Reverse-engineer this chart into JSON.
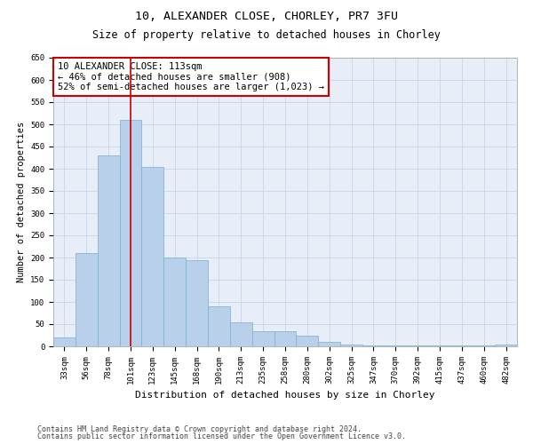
{
  "title1": "10, ALEXANDER CLOSE, CHORLEY, PR7 3FU",
  "title2": "Size of property relative to detached houses in Chorley",
  "xlabel": "Distribution of detached houses by size in Chorley",
  "ylabel": "Number of detached properties",
  "categories": [
    "33sqm",
    "56sqm",
    "78sqm",
    "101sqm",
    "123sqm",
    "145sqm",
    "168sqm",
    "190sqm",
    "213sqm",
    "235sqm",
    "258sqm",
    "280sqm",
    "302sqm",
    "325sqm",
    "347sqm",
    "370sqm",
    "392sqm",
    "415sqm",
    "437sqm",
    "460sqm",
    "482sqm"
  ],
  "values": [
    20,
    210,
    430,
    510,
    405,
    200,
    195,
    90,
    55,
    35,
    35,
    25,
    10,
    5,
    2,
    2,
    2,
    2,
    2,
    2,
    5
  ],
  "bar_color": "#b8d0ea",
  "bar_edge_color": "#7aaed4",
  "grid_color": "#c8d4e8",
  "bg_color": "#e8eef8",
  "annotation_box_color": "#cc0000",
  "vline_color": "#cc0000",
  "vline_x": 3.0,
  "annotation_text": "10 ALEXANDER CLOSE: 113sqm\n← 46% of detached houses are smaller (908)\n52% of semi-detached houses are larger (1,023) →",
  "ylim": [
    0,
    650
  ],
  "yticks": [
    0,
    50,
    100,
    150,
    200,
    250,
    300,
    350,
    400,
    450,
    500,
    550,
    600,
    650
  ],
  "footnote1": "Contains HM Land Registry data © Crown copyright and database right 2024.",
  "footnote2": "Contains public sector information licensed under the Open Government Licence v3.0.",
  "title1_fontsize": 9.5,
  "title2_fontsize": 8.5,
  "xlabel_fontsize": 8,
  "ylabel_fontsize": 7.5,
  "tick_fontsize": 6.5,
  "annot_fontsize": 7.5,
  "footnote_fontsize": 6
}
